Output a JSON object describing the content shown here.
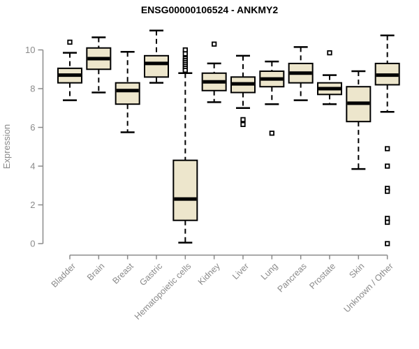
{
  "page": {
    "title": "ENSG00000106524 - ANKMY2"
  },
  "chart_data": {
    "type": "boxplot",
    "title": "ENSG00000106524 - ANKMY2",
    "xlabel": "",
    "ylabel": "Expression",
    "ylim": [
      0,
      10
    ],
    "yticks": [
      0,
      2,
      4,
      6,
      8,
      10
    ],
    "grid": false,
    "legend": "none",
    "x_tick_label_rotation": 45,
    "categories": [
      "Bladder",
      "Brain",
      "Breast",
      "Gastric",
      "Hematopoietic cells",
      "Kidney",
      "Liver",
      "Lung",
      "Pancreas",
      "Prostate",
      "Skin",
      "Unknown / Other"
    ],
    "series": [
      {
        "name": "Bladder",
        "whisker_low": 7.4,
        "q1": 8.3,
        "median": 8.7,
        "q3": 9.05,
        "whisker_high": 9.85,
        "outliers": [
          10.4
        ]
      },
      {
        "name": "Brain",
        "whisker_low": 7.8,
        "q1": 9.0,
        "median": 9.55,
        "q3": 10.1,
        "whisker_high": 10.65,
        "outliers": []
      },
      {
        "name": "Breast",
        "whisker_low": 5.75,
        "q1": 7.2,
        "median": 7.9,
        "q3": 8.3,
        "whisker_high": 9.9,
        "outliers": []
      },
      {
        "name": "Gastric",
        "whisker_low": 8.3,
        "q1": 8.6,
        "median": 9.3,
        "q3": 9.7,
        "whisker_high": 11.0,
        "outliers": []
      },
      {
        "name": "Hematopoietic cells",
        "whisker_low": 0.05,
        "q1": 1.2,
        "median": 2.3,
        "q3": 4.3,
        "whisker_high": 8.8,
        "outliers": [
          10.0,
          9.8,
          9.55,
          9.45,
          9.35,
          9.25,
          9.15,
          9.05,
          8.95
        ]
      },
      {
        "name": "Kidney",
        "whisker_low": 7.3,
        "q1": 7.9,
        "median": 8.35,
        "q3": 8.8,
        "whisker_high": 9.3,
        "outliers": [
          10.3
        ]
      },
      {
        "name": "Liver",
        "whisker_low": 7.0,
        "q1": 7.8,
        "median": 8.25,
        "q3": 8.6,
        "whisker_high": 9.7,
        "outliers": [
          6.4,
          6.15
        ]
      },
      {
        "name": "Lung",
        "whisker_low": 7.2,
        "q1": 8.1,
        "median": 8.5,
        "q3": 8.9,
        "whisker_high": 9.4,
        "outliers": [
          5.7
        ]
      },
      {
        "name": "Pancreas",
        "whisker_low": 7.4,
        "q1": 8.3,
        "median": 8.8,
        "q3": 9.3,
        "whisker_high": 10.15,
        "outliers": []
      },
      {
        "name": "Prostate",
        "whisker_low": 7.2,
        "q1": 7.7,
        "median": 8.0,
        "q3": 8.3,
        "whisker_high": 8.7,
        "outliers": [
          9.85
        ]
      },
      {
        "name": "Skin",
        "whisker_low": 3.85,
        "q1": 6.3,
        "median": 7.25,
        "q3": 8.1,
        "whisker_high": 8.9,
        "outliers": []
      },
      {
        "name": "Unknown / Other",
        "whisker_low": 6.8,
        "q1": 8.2,
        "median": 8.7,
        "q3": 9.3,
        "whisker_high": 10.75,
        "outliers": [
          4.9,
          4.0,
          2.85,
          2.7,
          1.3,
          1.1,
          0.0
        ]
      }
    ],
    "colors": {
      "box_fill": "#EDE6CC",
      "box_border": "#000000",
      "median_line": "#000000",
      "whisker": "#000000",
      "outlier": "#000000",
      "axis": "#8a8a8a",
      "axis_text": "#8a8a8a",
      "title_text": "#000000",
      "background": "#ffffff"
    }
  }
}
